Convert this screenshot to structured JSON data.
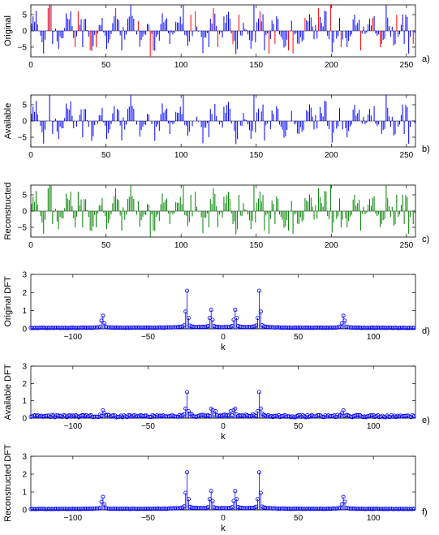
{
  "chart_data": [
    {
      "type": "stem",
      "tag": "a)",
      "ylabel": "Original",
      "xlabel": "",
      "xlim": [
        0,
        256
      ],
      "ylim": [
        -8,
        8
      ],
      "xticks": [
        0,
        50,
        100,
        150,
        200,
        250
      ],
      "yticks": [
        -5,
        0,
        5
      ],
      "series": [
        {
          "name": "",
          "color": "#0000ff",
          "kind": "signal",
          "length": 256,
          "spikes": [
            [
              12,
              9
            ],
            [
              14,
              -4
            ],
            [
              26,
              6
            ],
            [
              34,
              -5
            ],
            [
              47,
              4
            ],
            [
              60,
              -6
            ],
            [
              66,
              8
            ],
            [
              92,
              -4
            ],
            [
              101,
              9
            ],
            [
              118,
              -5
            ],
            [
              130,
              5
            ],
            [
              148,
              8
            ],
            [
              155,
              -6
            ],
            [
              178,
              -4
            ],
            [
              196,
              6
            ],
            [
              210,
              -5
            ],
            [
              236,
              9
            ],
            [
              248,
              -4
            ],
            [
              251,
              -7
            ]
          ]
        },
        {
          "name": "",
          "color": "#ff0000",
          "kind": "missing",
          "samples": [
            [
              11,
              7
            ],
            [
              13,
              8
            ],
            [
              29,
              -5
            ],
            [
              31,
              6
            ],
            [
              39,
              -6
            ],
            [
              43,
              -5
            ],
            [
              56,
              7
            ],
            [
              71,
              3
            ],
            [
              79,
              -8
            ],
            [
              81,
              -6
            ],
            [
              106,
              5
            ],
            [
              109,
              6
            ],
            [
              121,
              7
            ],
            [
              124,
              -5
            ],
            [
              134,
              -4
            ],
            [
              138,
              5
            ],
            [
              152,
              6
            ],
            [
              158,
              -7
            ],
            [
              162,
              -4
            ],
            [
              171,
              -6
            ],
            [
              174,
              -7
            ],
            [
              182,
              4
            ],
            [
              191,
              7
            ],
            [
              199,
              8
            ],
            [
              206,
              -5
            ],
            [
              219,
              -6
            ],
            [
              227,
              4
            ],
            [
              232,
              -5
            ],
            [
              243,
              5
            ],
            [
              254,
              -4
            ]
          ]
        }
      ]
    },
    {
      "type": "stem",
      "tag": "b)",
      "ylabel": "Available",
      "xlabel": "",
      "xlim": [
        0,
        256
      ],
      "ylim": [
        -8,
        8
      ],
      "xticks": [
        0,
        50,
        100,
        150,
        200,
        250
      ],
      "yticks": [
        -5,
        0,
        5
      ],
      "series": [
        {
          "name": "",
          "color": "#0000ff",
          "kind": "signal-gapped",
          "length": 256
        }
      ]
    },
    {
      "type": "stem",
      "tag": "c)",
      "ylabel": "Reconstructed",
      "xlabel": "",
      "xlim": [
        0,
        256
      ],
      "ylim": [
        -8,
        8
      ],
      "xticks": [
        0,
        50,
        100,
        150,
        200,
        250
      ],
      "yticks": [
        -5,
        0,
        5
      ],
      "series": [
        {
          "name": "",
          "color": "#008000",
          "kind": "signal",
          "length": 256
        }
      ]
    },
    {
      "type": "stem-marker",
      "tag": "d)",
      "ylabel": "Original DFT",
      "xlabel": "k",
      "xlim": [
        -128,
        128
      ],
      "ylim": [
        0,
        3
      ],
      "xticks": [
        -100,
        -50,
        0,
        50,
        100
      ],
      "yticks": [
        0,
        1,
        2,
        3
      ],
      "series": [
        {
          "name": "",
          "color": "#0000ff",
          "noise": 0.0,
          "peaks": [
            [
              -80,
              0.72
            ],
            [
              -81,
              0.45
            ],
            [
              -79,
              0.3
            ],
            [
              -24,
              2.1
            ],
            [
              -25,
              0.95
            ],
            [
              -23,
              0.6
            ],
            [
              -8,
              1.05
            ],
            [
              -9,
              0.6
            ],
            [
              -7,
              0.5
            ],
            [
              8,
              1.05
            ],
            [
              9,
              0.6
            ],
            [
              7,
              0.5
            ],
            [
              24,
              2.1
            ],
            [
              25,
              0.95
            ],
            [
              23,
              0.6
            ],
            [
              80,
              0.72
            ],
            [
              81,
              0.45
            ],
            [
              79,
              0.3
            ]
          ]
        }
      ]
    },
    {
      "type": "stem-marker",
      "tag": "e)",
      "ylabel": "Available DFT",
      "xlabel": "k",
      "xlim": [
        -128,
        128
      ],
      "ylim": [
        0,
        3
      ],
      "xticks": [
        -100,
        -50,
        0,
        50,
        100
      ],
      "yticks": [
        0,
        1,
        2,
        3
      ],
      "series": [
        {
          "name": "",
          "color": "#0000ff",
          "noise": 0.14,
          "peaks": [
            [
              -80,
              0.45
            ],
            [
              -79,
              0.28
            ],
            [
              -24,
              1.5
            ],
            [
              -25,
              0.55
            ],
            [
              -23,
              0.4
            ],
            [
              -8,
              0.55
            ],
            [
              -7,
              0.45
            ],
            [
              -5,
              0.4
            ],
            [
              8,
              0.55
            ],
            [
              7,
              0.45
            ],
            [
              5,
              0.4
            ],
            [
              24,
              1.5
            ],
            [
              25,
              0.55
            ],
            [
              23,
              0.4
            ],
            [
              80,
              0.45
            ],
            [
              79,
              0.28
            ]
          ]
        }
      ]
    },
    {
      "type": "stem-marker",
      "tag": "f)",
      "ylabel": "Reconstructed DFT",
      "xlabel": "k",
      "xlim": [
        -128,
        128
      ],
      "ylim": [
        0,
        3
      ],
      "xticks": [
        -100,
        -50,
        0,
        50,
        100
      ],
      "yticks": [
        0,
        1,
        2,
        3
      ],
      "series": [
        {
          "name": "",
          "color": "#0000ff",
          "noise": 0.0,
          "peaks": [
            [
              -80,
              0.72
            ],
            [
              -81,
              0.45
            ],
            [
              -79,
              0.3
            ],
            [
              -24,
              2.1
            ],
            [
              -25,
              0.95
            ],
            [
              -23,
              0.6
            ],
            [
              -8,
              1.05
            ],
            [
              -9,
              0.6
            ],
            [
              -7,
              0.5
            ],
            [
              8,
              1.05
            ],
            [
              9,
              0.6
            ],
            [
              7,
              0.5
            ],
            [
              24,
              2.1
            ],
            [
              25,
              0.95
            ],
            [
              23,
              0.6
            ],
            [
              80,
              0.72
            ],
            [
              81,
              0.45
            ],
            [
              79,
              0.3
            ]
          ]
        }
      ]
    }
  ]
}
